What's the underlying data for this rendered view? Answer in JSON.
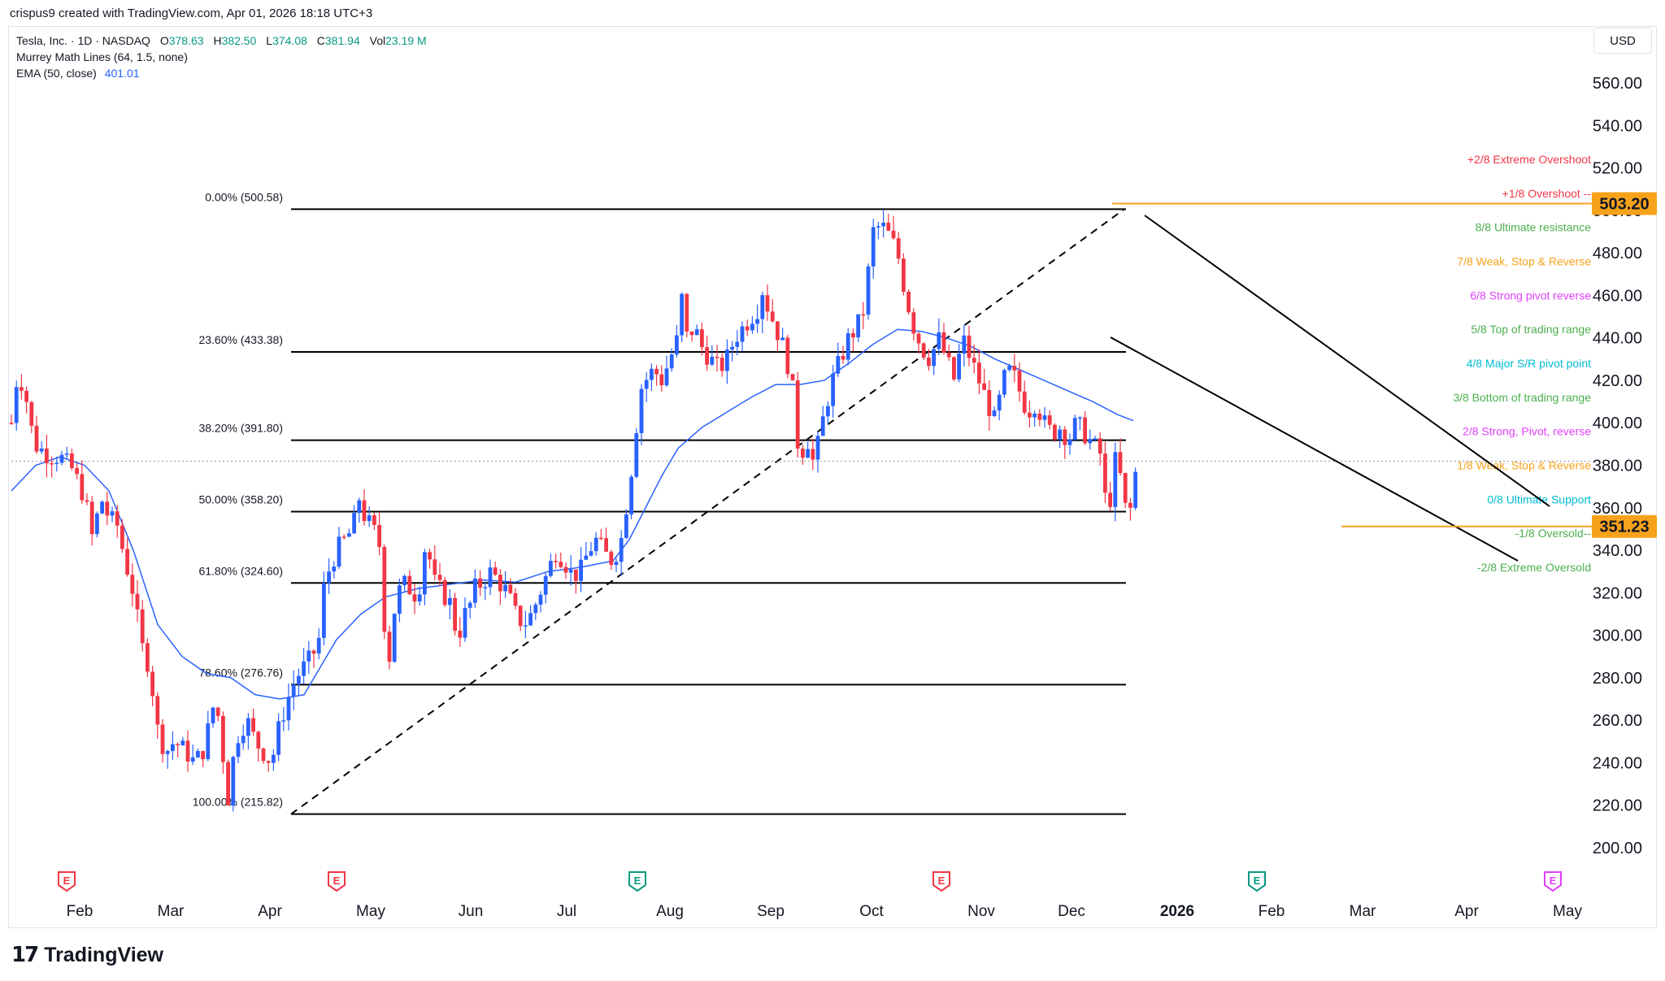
{
  "caption": "crispus9 created with TradingView.com, Apr 01, 2026 18:18 UTC+3",
  "legend": {
    "symbol": "Tesla, Inc. · 1D · NASDAQ",
    "o_label": "O",
    "o": "378.63",
    "h_label": "H",
    "h": "382.50",
    "l_label": "L",
    "l": "374.08",
    "c_label": "C",
    "c": "381.94",
    "vol_label": "Vol",
    "vol": "23.19 M",
    "murrey": "Murrey Math Lines (64, 1.5, none)",
    "ema": "EMA (50, close)",
    "ema_value": "401.01"
  },
  "currency": "USD",
  "brand": "TradingView",
  "colors": {
    "up": "#2962ff",
    "down": "#f23645",
    "ema": "#2962ff",
    "fib": "#000000",
    "price_tag": "#f7a21b",
    "event_earnings": "#f23645",
    "event_dividend": "#089981",
    "event_future": "#e040fb"
  },
  "chart_data": {
    "type": "candlestick",
    "title": "Tesla, Inc. · 1D · NASDAQ",
    "ylim": [
      190,
      575
    ],
    "y_ticks": [
      "560.00",
      "540.00",
      "520.00",
      "500.00",
      "480.00",
      "460.00",
      "440.00",
      "420.00",
      "400.00",
      "380.00",
      "360.00",
      "340.00",
      "320.00",
      "300.00",
      "280.00",
      "260.00",
      "240.00",
      "220.00",
      "200.00"
    ],
    "x_ticks": [
      "Feb",
      "Mar",
      "Apr",
      "May",
      "Jun",
      "Jul",
      "Aug",
      "Sep",
      "Oct",
      "Nov",
      "Dec",
      "2026",
      "Feb",
      "Mar",
      "Apr",
      "May"
    ],
    "price_tags": [
      {
        "label": "503.20",
        "value": 503.2
      },
      {
        "label": "351.23",
        "value": 351.23
      }
    ],
    "fib_levels": [
      {
        "label": "0.00% (500.58)",
        "value": 500.58
      },
      {
        "label": "23.60% (433.38)",
        "value": 433.38
      },
      {
        "label": "38.20% (391.80)",
        "value": 391.8
      },
      {
        "label": "50.00% (358.20)",
        "value": 358.2
      },
      {
        "label": "61.80% (324.60)",
        "value": 324.6
      },
      {
        "label": "78.60% (276.76)",
        "value": 276.76
      },
      {
        "label": "100.00% (215.82)",
        "value": 215.82
      }
    ],
    "murrey_labels": [
      {
        "label": "+2/8 Extreme Overshoot",
        "value": 524,
        "color": "#f23645"
      },
      {
        "label": "+1/8 Overshoot --",
        "value": 508,
        "color": "#f23645"
      },
      {
        "label": "8/8 Ultimate resistance",
        "value": 492,
        "color": "#4caf50"
      },
      {
        "label": "7/8 Weak, Stop & Reverse",
        "value": 476,
        "color": "#f7a21b"
      },
      {
        "label": "6/8 Strong pivot reverse",
        "value": 460,
        "color": "#e040fb"
      },
      {
        "label": "5/8 Top of trading range",
        "value": 444,
        "color": "#4caf50"
      },
      {
        "label": "4/8 Major S/R pivot point",
        "value": 428,
        "color": "#00bcd4"
      },
      {
        "label": "3/8 Bottom of trading range",
        "value": 412,
        "color": "#4caf50"
      },
      {
        "label": "2/8 Strong, Pivot, reverse",
        "value": 396,
        "color": "#e040fb"
      },
      {
        "label": "1/8 Weak, Stop & Reverse",
        "value": 380,
        "color": "#f7a21b"
      },
      {
        "label": "0/8 Ultimate Support",
        "value": 364,
        "color": "#00bcd4"
      },
      {
        "label": "-1/8 Oversold--",
        "value": 348,
        "color": "#4caf50"
      },
      {
        "label": "-2/8 Extreme Oversold",
        "value": 332,
        "color": "#4caf50"
      }
    ],
    "current_price": 381.94,
    "events": [
      {
        "label": "E",
        "kind": "earnings",
        "month_index": 0
      },
      {
        "label": "E",
        "kind": "earnings",
        "month_index": 3
      },
      {
        "label": "E",
        "kind": "dividend",
        "month_index": 6
      },
      {
        "label": "E",
        "kind": "earnings",
        "month_index": 9
      },
      {
        "label": "E",
        "kind": "dividend",
        "month_index": 12
      },
      {
        "label": "E",
        "kind": "future",
        "month_index": 15
      }
    ],
    "price_series": [
      [
        0,
        400
      ],
      [
        8,
        425
      ],
      [
        18,
        412
      ],
      [
        28,
        390
      ],
      [
        45,
        385
      ],
      [
        60,
        384
      ],
      [
        75,
        378
      ],
      [
        90,
        365
      ],
      [
        100,
        345
      ],
      [
        110,
        365
      ],
      [
        120,
        355
      ],
      [
        130,
        352
      ],
      [
        140,
        335
      ],
      [
        150,
        320
      ],
      [
        160,
        295
      ],
      [
        170,
        285
      ],
      [
        180,
        255
      ],
      [
        190,
        245
      ],
      [
        200,
        250
      ],
      [
        215,
        245
      ],
      [
        225,
        240
      ],
      [
        235,
        245
      ],
      [
        245,
        260
      ],
      [
        250,
        270
      ],
      [
        258,
        255
      ],
      [
        262,
        235
      ],
      [
        268,
        220
      ],
      [
        272,
        240
      ],
      [
        280,
        255
      ],
      [
        290,
        260
      ],
      [
        300,
        250
      ],
      [
        310,
        245
      ],
      [
        320,
        240
      ],
      [
        330,
        258
      ],
      [
        340,
        270
      ],
      [
        350,
        280
      ],
      [
        360,
        285
      ],
      [
        370,
        290
      ],
      [
        380,
        300
      ],
      [
        385,
        325
      ],
      [
        390,
        330
      ],
      [
        400,
        340
      ],
      [
        410,
        345
      ],
      [
        420,
        350
      ],
      [
        428,
        365
      ],
      [
        435,
        355
      ],
      [
        445,
        350
      ],
      [
        455,
        340
      ],
      [
        460,
        295
      ],
      [
        465,
        290
      ],
      [
        470,
        310
      ],
      [
        480,
        325
      ],
      [
        490,
        322
      ],
      [
        500,
        318
      ],
      [
        510,
        345
      ],
      [
        520,
        325
      ],
      [
        530,
        320
      ],
      [
        540,
        315
      ],
      [
        545,
        305
      ],
      [
        550,
        300
      ],
      [
        558,
        310
      ],
      [
        565,
        315
      ],
      [
        570,
        322
      ],
      [
        580,
        325
      ],
      [
        590,
        330
      ],
      [
        600,
        325
      ],
      [
        610,
        320
      ],
      [
        620,
        310
      ],
      [
        630,
        305
      ],
      [
        640,
        310
      ],
      [
        650,
        320
      ],
      [
        660,
        330
      ],
      [
        670,
        340
      ],
      [
        680,
        335
      ],
      [
        690,
        328
      ],
      [
        700,
        330
      ],
      [
        710,
        340
      ],
      [
        720,
        345
      ],
      [
        730,
        338
      ],
      [
        740,
        335
      ],
      [
        750,
        345
      ],
      [
        760,
        370
      ],
      [
        768,
        395
      ],
      [
        772,
        415
      ],
      [
        780,
        420
      ],
      [
        790,
        425
      ],
      [
        800,
        420
      ],
      [
        810,
        430
      ],
      [
        820,
        440
      ],
      [
        825,
        460
      ],
      [
        830,
        440
      ],
      [
        840,
        445
      ],
      [
        850,
        435
      ],
      [
        860,
        430
      ],
      [
        870,
        425
      ],
      [
        880,
        430
      ],
      [
        890,
        440
      ],
      [
        900,
        445
      ],
      [
        910,
        450
      ],
      [
        920,
        455
      ],
      [
        925,
        465
      ],
      [
        930,
        455
      ],
      [
        940,
        445
      ],
      [
        950,
        435
      ],
      [
        960,
        420
      ],
      [
        965,
        395
      ],
      [
        970,
        385
      ],
      [
        980,
        392
      ],
      [
        987,
        380
      ],
      [
        995,
        395
      ],
      [
        1000,
        405
      ],
      [
        1010,
        420
      ],
      [
        1020,
        430
      ],
      [
        1030,
        440
      ],
      [
        1040,
        445
      ],
      [
        1050,
        455
      ],
      [
        1055,
        475
      ],
      [
        1060,
        490
      ],
      [
        1070,
        493
      ],
      [
        1080,
        488
      ],
      [
        1090,
        480
      ],
      [
        1100,
        460
      ],
      [
        1110,
        445
      ],
      [
        1120,
        435
      ],
      [
        1130,
        430
      ],
      [
        1140,
        440
      ],
      [
        1150,
        430
      ],
      [
        1160,
        420
      ],
      [
        1170,
        440
      ],
      [
        1180,
        430
      ],
      [
        1190,
        420
      ],
      [
        1200,
        410
      ],
      [
        1210,
        400
      ],
      [
        1220,
        420
      ],
      [
        1230,
        425
      ],
      [
        1240,
        415
      ],
      [
        1250,
        405
      ],
      [
        1260,
        410
      ],
      [
        1270,
        400
      ],
      [
        1280,
        395
      ],
      [
        1290,
        398
      ],
      [
        1300,
        392
      ],
      [
        1310,
        400
      ],
      [
        1320,
        395
      ],
      [
        1330,
        390
      ],
      [
        1340,
        385
      ],
      [
        1345,
        365
      ],
      [
        1350,
        358
      ],
      [
        1355,
        378
      ],
      [
        1360,
        385
      ],
      [
        1365,
        372
      ],
      [
        1370,
        360
      ],
      [
        1375,
        355
      ],
      [
        1380,
        370
      ],
      [
        1385,
        382
      ]
    ],
    "ema_series": [
      [
        0,
        368
      ],
      [
        30,
        380
      ],
      [
        60,
        384
      ],
      [
        90,
        380
      ],
      [
        120,
        368
      ],
      [
        150,
        340
      ],
      [
        180,
        305
      ],
      [
        210,
        290
      ],
      [
        240,
        282
      ],
      [
        270,
        280
      ],
      [
        300,
        272
      ],
      [
        330,
        270
      ],
      [
        360,
        272
      ],
      [
        380,
        285
      ],
      [
        400,
        298
      ],
      [
        430,
        310
      ],
      [
        460,
        318
      ],
      [
        500,
        322
      ],
      [
        540,
        324
      ],
      [
        580,
        326
      ],
      [
        620,
        325
      ],
      [
        660,
        330
      ],
      [
        700,
        332
      ],
      [
        740,
        335
      ],
      [
        760,
        345
      ],
      [
        780,
        360
      ],
      [
        800,
        375
      ],
      [
        820,
        388
      ],
      [
        850,
        398
      ],
      [
        880,
        405
      ],
      [
        910,
        412
      ],
      [
        940,
        418
      ],
      [
        970,
        418
      ],
      [
        1000,
        420
      ],
      [
        1030,
        428
      ],
      [
        1060,
        437
      ],
      [
        1090,
        444
      ],
      [
        1120,
        443
      ],
      [
        1150,
        440
      ],
      [
        1180,
        436
      ],
      [
        1210,
        430
      ],
      [
        1240,
        425
      ],
      [
        1270,
        420
      ],
      [
        1300,
        415
      ],
      [
        1330,
        410
      ],
      [
        1360,
        404
      ],
      [
        1380,
        401
      ]
    ]
  }
}
